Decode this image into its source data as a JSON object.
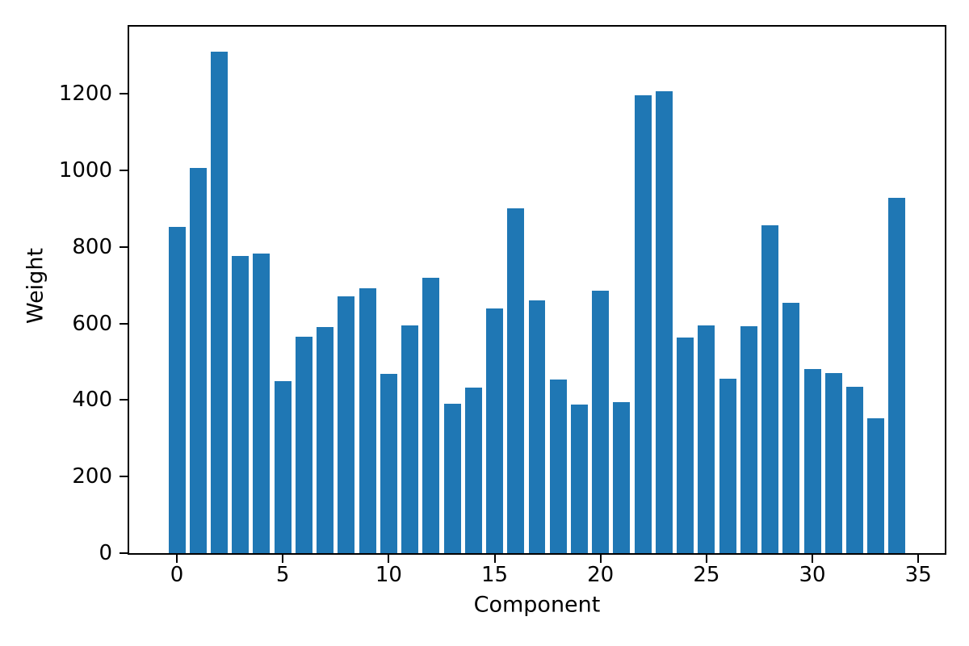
{
  "chart_data": {
    "type": "bar",
    "title": "",
    "xlabel": "Component",
    "ylabel": "Weight",
    "x": [
      0,
      1,
      2,
      3,
      4,
      5,
      6,
      7,
      8,
      9,
      10,
      11,
      12,
      13,
      14,
      15,
      16,
      17,
      18,
      19,
      20,
      21,
      22,
      23,
      24,
      25,
      26,
      27,
      28,
      29,
      30,
      31,
      32,
      33,
      34
    ],
    "values": [
      852,
      1006,
      1310,
      777,
      783,
      449,
      566,
      590,
      671,
      693,
      468,
      596,
      720,
      391,
      432,
      639,
      901,
      660,
      454,
      389,
      686,
      394,
      1196,
      1207,
      564,
      596,
      455,
      592,
      856,
      653,
      482,
      470,
      435,
      353,
      928
    ],
    "xticks": [
      0,
      5,
      10,
      15,
      20,
      25,
      30,
      35
    ],
    "yticks": [
      0,
      200,
      400,
      600,
      800,
      1000,
      1200
    ],
    "xlim": [
      -2.25,
      36.25
    ],
    "ylim": [
      0,
      1375.5
    ],
    "bar_color": "#1f77b4",
    "bar_width": 0.8,
    "background": "#ffffff",
    "spine_color": "#000000",
    "grid": false,
    "legend_visible": false
  }
}
